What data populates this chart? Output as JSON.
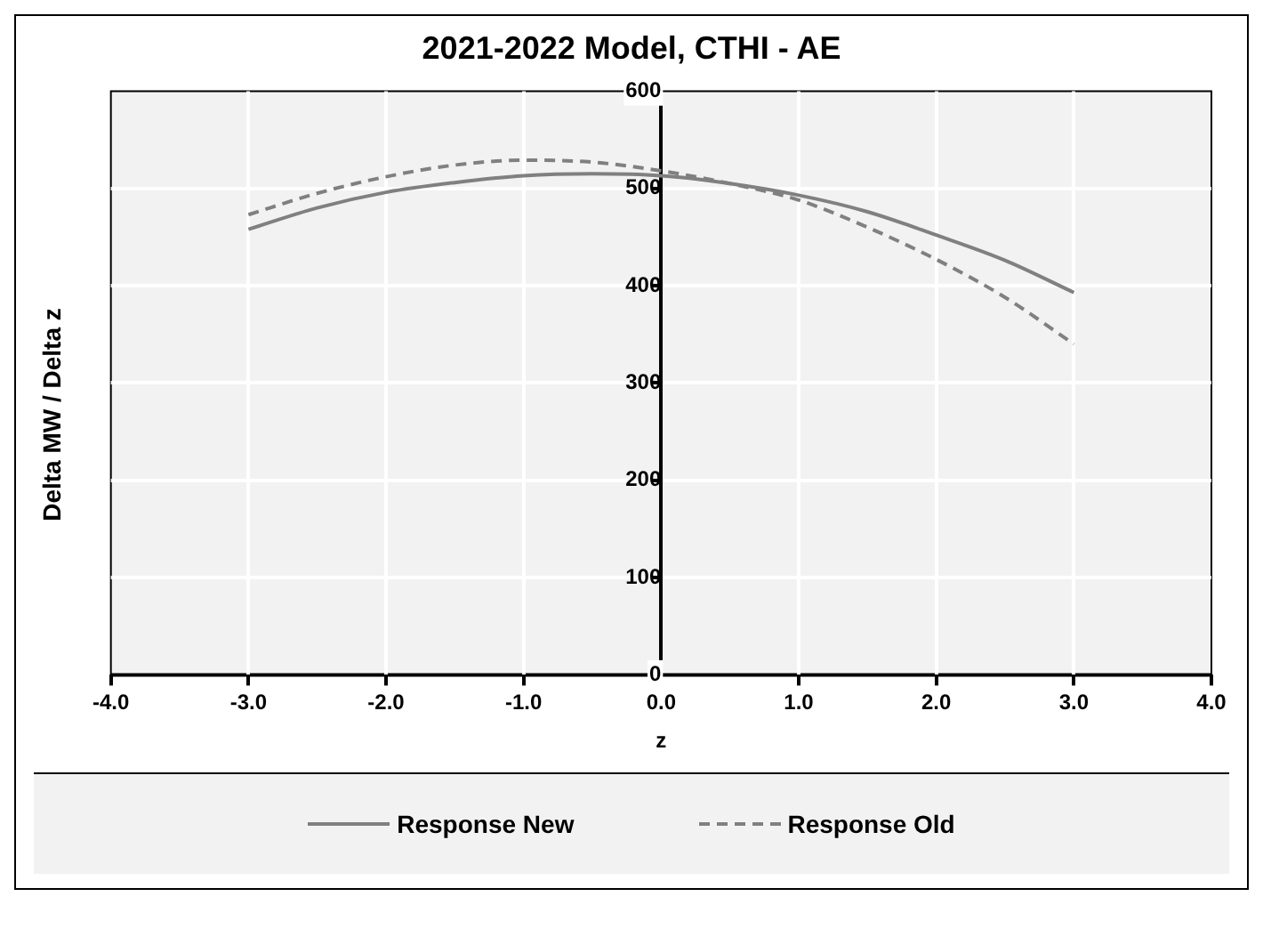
{
  "chart_data": {
    "type": "line",
    "title": "2021-2022 Model, CTHI - AE",
    "xlabel": "z",
    "ylabel": "Delta MW / Delta z",
    "x": [
      -3,
      -2.5,
      -2,
      -1.5,
      -1,
      -0.5,
      0,
      0.5,
      1,
      1.5,
      2,
      2.5,
      3
    ],
    "series": [
      {
        "name": "Response New",
        "color": "#808080",
        "line_style": "solid",
        "values": [
          458,
          480,
          496,
          506,
          513,
          515,
          513,
          505,
          493,
          476,
          452,
          426,
          393
        ]
      },
      {
        "name": "Response Old",
        "color": "#808080",
        "line_style": "dashed",
        "values": [
          473,
          495,
          512,
          524,
          529,
          527,
          518,
          505,
          488,
          460,
          427,
          388,
          340
        ]
      }
    ],
    "xlim": [
      -4,
      4
    ],
    "xticks": [
      {
        "value": -4,
        "label": "-4.0"
      },
      {
        "value": -3,
        "label": "-3.0"
      },
      {
        "value": -2,
        "label": "-2.0"
      },
      {
        "value": -1,
        "label": "-1.0"
      },
      {
        "value": 0,
        "label": "0.0"
      },
      {
        "value": 1,
        "label": "1.0"
      },
      {
        "value": 2,
        "label": "2.0"
      },
      {
        "value": 3,
        "label": "3.0"
      },
      {
        "value": 4,
        "label": "4.0"
      }
    ],
    "ylim": [
      0,
      600
    ],
    "yticks": [
      0,
      100,
      200,
      300,
      400,
      500,
      600
    ],
    "grid": true,
    "legend": "bottom",
    "marker": "none"
  }
}
